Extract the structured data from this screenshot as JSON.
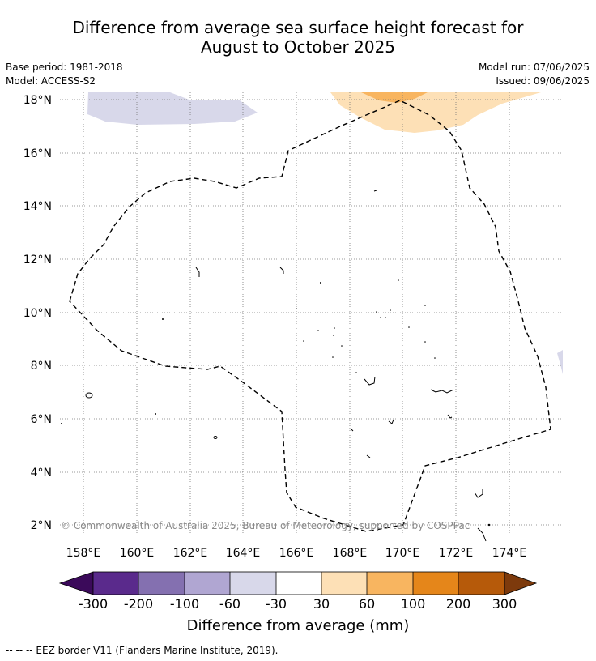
{
  "title": {
    "line1": "Difference from average sea surface height forecast for",
    "line2": "August to October 2025"
  },
  "meta": {
    "base_period": "Base period: 1981-2018",
    "model": "Model: ACCESS-S2",
    "model_run": "Model run: 07/06/2025",
    "issued": "Issued: 09/06/2025"
  },
  "map": {
    "lon_labels": [
      "158°E",
      "160°E",
      "162°E",
      "164°E",
      "166°E",
      "168°E",
      "170°E",
      "172°E",
      "174°E"
    ],
    "lat_labels": [
      "18°N",
      "16°N",
      "14°N",
      "12°N",
      "10°N",
      "8°N",
      "6°N",
      "4°N",
      "2°N"
    ],
    "copyright": "© Commonwealth of Australia 2025, Bureau of Meteorology, supported by COSPPac"
  },
  "colorbar": {
    "label": "Difference from average (mm)",
    "ticks": [
      "-300",
      "-200",
      "-100",
      "-60",
      "-30",
      "30",
      "60",
      "100",
      "200",
      "300"
    ],
    "colors": {
      "below_min": "#3b0a5a",
      "c1": "#5a2a8c",
      "c2": "#8470b0",
      "c3": "#b0a6d2",
      "c4": "#d8d8ea",
      "c5": "#ffffff",
      "c6": "#fde0b6",
      "c7": "#f8b560",
      "c8": "#e5861a",
      "c9": "#b65a0a",
      "above_max": "#7d3a0c"
    }
  },
  "footnote": "--  --  -- EEZ border V11 (Flanders Marine Institute, 2019)."
}
